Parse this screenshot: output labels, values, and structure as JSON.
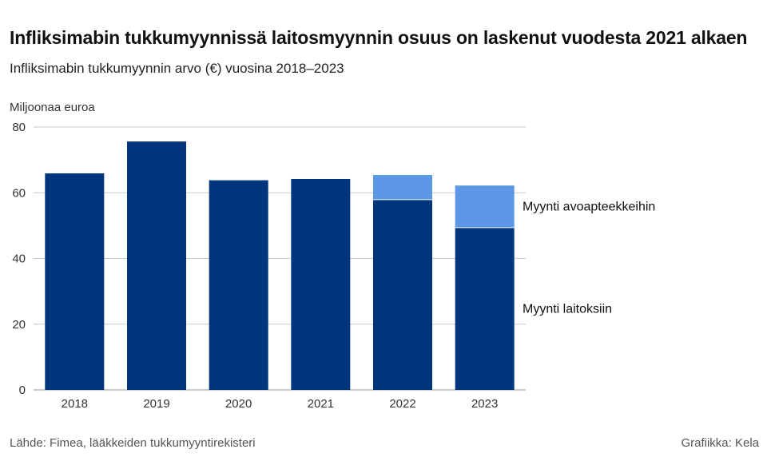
{
  "header": {
    "title": "Infliksimabin tukkumyynnissä laitosmyynnin osuus on laskenut vuodesta 2021 alkaen",
    "subtitle": "Infliksimabin tukkumyynnin arvo (€) vuosina 2018–2023"
  },
  "footer": {
    "source": "Lähde: Fimea, lääkkeiden tukkumyyntirekisteri",
    "credit": "Grafiikka: Kela"
  },
  "chart_data": {
    "type": "bar",
    "stacked": true,
    "title": "Infliksimabin tukkumyynnissä laitosmyynnin osuus on laskenut vuodesta 2021 alkaen",
    "subtitle": "Infliksimabin tukkumyynnin arvo (€) vuosina 2018–2023",
    "ylabel": "Miljoonaa euroa",
    "xlabel": "",
    "ylim": [
      0,
      80
    ],
    "yticks": [
      0,
      20,
      40,
      60,
      80
    ],
    "grid": true,
    "categories": [
      "2018",
      "2019",
      "2020",
      "2021",
      "2022",
      "2023"
    ],
    "series": [
      {
        "name": "Myynti laitoksiin",
        "color": "#00367e",
        "values": [
          65.9,
          75.6,
          63.8,
          64.2,
          57.9,
          49.4
        ]
      },
      {
        "name": "Myynti avoapteekkeihin",
        "color": "#5b97e5",
        "values": [
          0,
          0,
          0,
          0,
          7.5,
          12.8
        ]
      }
    ],
    "legend_placement": "right, beside bars"
  }
}
